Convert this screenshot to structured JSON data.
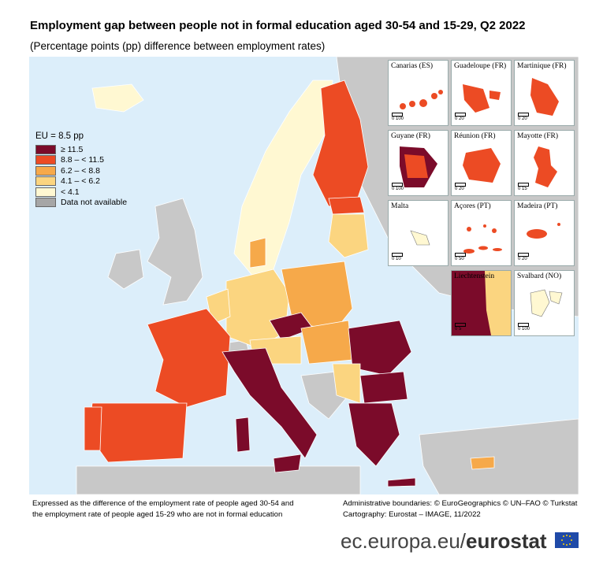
{
  "title": "Employment gap between people not in formal education aged 30-54 and 15-29, Q2 2022",
  "subtitle": "(Percentage points (pp) difference between employment rates)",
  "legend": {
    "title": "EU = 8.5 pp",
    "items": [
      {
        "label": "≥ 11.5",
        "color": "#7b0b2a"
      },
      {
        "label": "8.8 – < 11.5",
        "color": "#ec4b24"
      },
      {
        "label": "6.2 – < 8.8",
        "color": "#f6a94a"
      },
      {
        "label": "4.1 – < 6.2",
        "color": "#fbd580"
      },
      {
        "label": "< 4.1",
        "color": "#fff8d2"
      },
      {
        "label": "Data not available",
        "color": "#a6a6a6"
      }
    ]
  },
  "insets": [
    {
      "name": "Canarias (ES)",
      "scale": "0 100"
    },
    {
      "name": "Guadeloupe (FR)",
      "scale": "0 20"
    },
    {
      "name": "Martinique (FR)",
      "scale": "0 20"
    },
    {
      "name": "Guyane (FR)",
      "scale": "0 100"
    },
    {
      "name": "Réunion (FR)",
      "scale": "0 20"
    },
    {
      "name": "Mayotte (FR)",
      "scale": "0 15"
    },
    {
      "name": "Malta",
      "scale": "0 10"
    },
    {
      "name": "Açores (PT)",
      "scale": "0 50"
    },
    {
      "name": "Madeira (PT)",
      "scale": "0 20"
    },
    {
      "name": "Liechtenstein",
      "scale": "0 5"
    },
    {
      "name": "Svalbard (NO)",
      "scale": "0 100"
    }
  ],
  "footnote_left": [
    "Expressed as the difference of the employment rate of people aged 30-54 and",
    "the employment rate of people aged 15-29 who are not in formal education"
  ],
  "footnote_right": [
    "Administrative boundaries: © EuroGeographics © UN–FAO © Turkstat",
    "Cartography: Eurostat – IMAGE, 11/2022"
  ],
  "brand": {
    "domain": "ec.europa.eu/",
    "name": "eurostat"
  }
}
